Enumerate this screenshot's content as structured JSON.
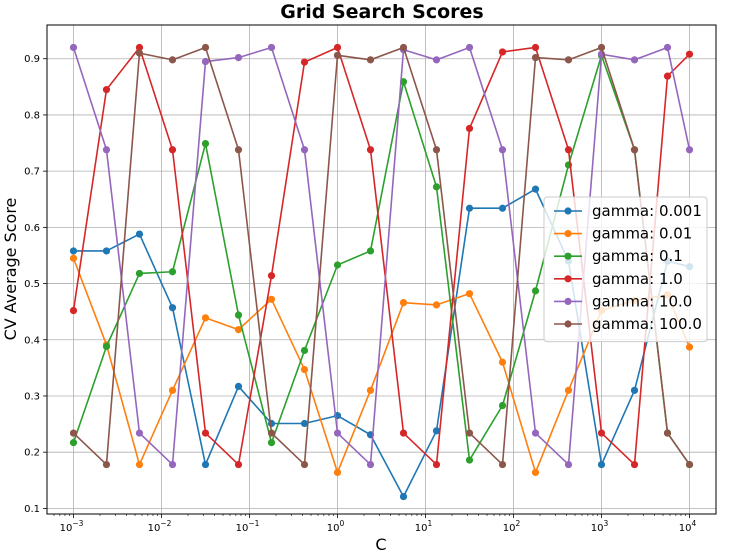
{
  "chart_data": {
    "type": "line",
    "title": "Grid Search Scores",
    "xlabel": "C",
    "ylabel": "CV Average Score",
    "xscale": "log",
    "xlim": [
      0.0005,
      20000
    ],
    "ylim": [
      0.09,
      0.96
    ],
    "grid": true,
    "legend_position": "right",
    "x": [
      0.001,
      0.00237,
      0.00562,
      0.01334,
      0.03162,
      0.07499,
      0.17783,
      0.4217,
      1.0,
      2.37137,
      5.62341,
      13.3352,
      31.6228,
      74.9894,
      177.828,
      421.697,
      1000,
      2371.37,
      5623.41,
      10000
    ],
    "x_ticks": [
      {
        "value": 0.001,
        "base": "10",
        "exp": "−3"
      },
      {
        "value": 0.01,
        "base": "10",
        "exp": "−2"
      },
      {
        "value": 0.1,
        "base": "10",
        "exp": "−1"
      },
      {
        "value": 1,
        "base": "10",
        "exp": "0"
      },
      {
        "value": 10,
        "base": "10",
        "exp": "1"
      },
      {
        "value": 100,
        "base": "10",
        "exp": "2"
      },
      {
        "value": 1000,
        "base": "10",
        "exp": "3"
      },
      {
        "value": 10000,
        "base": "10",
        "exp": "4"
      }
    ],
    "y_ticks": [
      0.1,
      0.2,
      0.3,
      0.4,
      0.5,
      0.6,
      0.7,
      0.8,
      0.9
    ],
    "series": [
      {
        "name": "gamma: 0.001",
        "color": "#1f77b4",
        "values": [
          0.558,
          0.558,
          0.588,
          0.457,
          0.178,
          0.317,
          0.251,
          0.251,
          0.265,
          0.231,
          0.121,
          0.238,
          0.634,
          0.634,
          0.668,
          0.54,
          0.178,
          0.31,
          0.54,
          0.53
        ]
      },
      {
        "name": "gamma: 0.01",
        "color": "#ff7f0e",
        "values": [
          0.545,
          0.391,
          0.178,
          0.31,
          0.439,
          0.418,
          0.472,
          0.347,
          0.164,
          0.31,
          0.466,
          0.462,
          0.482,
          0.36,
          0.164,
          0.31,
          0.452,
          0.47,
          0.48,
          0.387
        ]
      },
      {
        "name": "gamma: 0.1",
        "color": "#2ca02c",
        "values": [
          0.217,
          0.388,
          0.518,
          0.521,
          0.749,
          0.444,
          0.217,
          0.381,
          0.533,
          0.558,
          0.859,
          0.672,
          0.186,
          0.283,
          0.487,
          0.711,
          0.906,
          0.738,
          0.234,
          0.178
        ]
      },
      {
        "name": "gamma: 1.0",
        "color": "#d62728",
        "values": [
          0.452,
          0.845,
          0.92,
          0.738,
          0.234,
          0.178,
          0.514,
          0.894,
          0.92,
          0.738,
          0.234,
          0.178,
          0.776,
          0.912,
          0.92,
          0.738,
          0.234,
          0.178,
          0.869,
          0.908
        ]
      },
      {
        "name": "gamma: 10.0",
        "color": "#9467bd",
        "values": [
          0.92,
          0.738,
          0.234,
          0.178,
          0.895,
          0.902,
          0.92,
          0.738,
          0.234,
          0.178,
          0.916,
          0.898,
          0.92,
          0.738,
          0.234,
          0.178,
          0.908,
          0.898,
          0.92,
          0.738
        ]
      },
      {
        "name": "gamma: 100.0",
        "color": "#8c564b",
        "values": [
          0.234,
          0.178,
          0.91,
          0.898,
          0.92,
          0.738,
          0.234,
          0.178,
          0.906,
          0.898,
          0.92,
          0.738,
          0.234,
          0.178,
          0.902,
          0.898,
          0.92,
          0.738,
          0.234,
          0.178
        ]
      }
    ]
  }
}
